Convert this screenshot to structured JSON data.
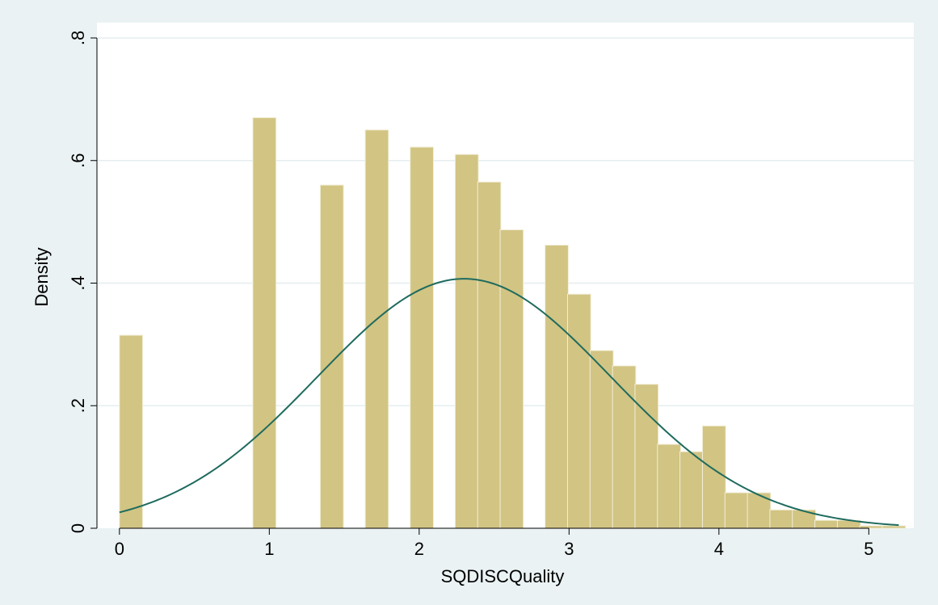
{
  "chart_data": {
    "type": "bar",
    "title": "",
    "xlabel": "SQDISCQuality",
    "ylabel": "Density",
    "xlim": [
      -0.15,
      5.3
    ],
    "ylim": [
      0,
      0.8
    ],
    "x_ticks": [
      0,
      1,
      2,
      3,
      4,
      5
    ],
    "x_tick_labels": [
      "0",
      "1",
      "2",
      "3",
      "4",
      "5"
    ],
    "y_ticks": [
      0,
      0.2,
      0.4,
      0.6,
      0.8
    ],
    "y_tick_labels": [
      "0",
      ".2",
      ".4",
      ".6",
      ".8"
    ],
    "grid": true,
    "legend": "none",
    "bin_width": 0.155,
    "bars": [
      {
        "x": 0.0,
        "density": 0.315
      },
      {
        "x": 0.89,
        "density": 0.67
      },
      {
        "x": 1.34,
        "density": 0.56
      },
      {
        "x": 1.64,
        "density": 0.65
      },
      {
        "x": 1.94,
        "density": 0.622
      },
      {
        "x": 2.24,
        "density": 0.61
      },
      {
        "x": 2.39,
        "density": 0.565
      },
      {
        "x": 2.54,
        "density": 0.487
      },
      {
        "x": 2.84,
        "density": 0.462
      },
      {
        "x": 2.99,
        "density": 0.382
      },
      {
        "x": 3.14,
        "density": 0.29
      },
      {
        "x": 3.29,
        "density": 0.265
      },
      {
        "x": 3.44,
        "density": 0.235
      },
      {
        "x": 3.59,
        "density": 0.137
      },
      {
        "x": 3.74,
        "density": 0.125
      },
      {
        "x": 3.89,
        "density": 0.167
      },
      {
        "x": 4.04,
        "density": 0.058
      },
      {
        "x": 4.19,
        "density": 0.058
      },
      {
        "x": 4.34,
        "density": 0.03
      },
      {
        "x": 4.49,
        "density": 0.03
      },
      {
        "x": 4.64,
        "density": 0.013
      },
      {
        "x": 4.79,
        "density": 0.013
      },
      {
        "x": 4.94,
        "density": 0.004
      },
      {
        "x": 5.09,
        "density": 0.004
      }
    ],
    "normal_curve": {
      "mean": 2.3,
      "sd": 0.98,
      "x_range": [
        0,
        5.2
      ]
    },
    "colors": {
      "background": "#eaf2f3",
      "plot_area": "#ffffff",
      "bar_fill": "#d2c483",
      "bar_edge": "#f2efd9",
      "curve": "#1e6b5e",
      "grid": "#e6eef0",
      "axis": "#000000"
    }
  }
}
